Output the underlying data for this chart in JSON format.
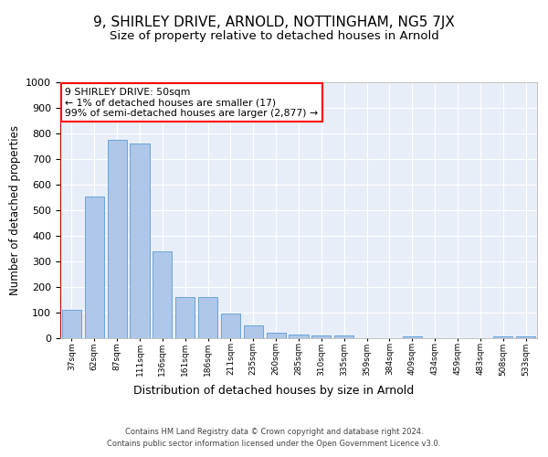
{
  "title1": "9, SHIRLEY DRIVE, ARNOLD, NOTTINGHAM, NG5 7JX",
  "title2": "Size of property relative to detached houses in Arnold",
  "xlabel": "Distribution of detached houses by size in Arnold",
  "ylabel": "Number of detached properties",
  "categories": [
    "37sqm",
    "62sqm",
    "87sqm",
    "111sqm",
    "136sqm",
    "161sqm",
    "186sqm",
    "211sqm",
    "235sqm",
    "260sqm",
    "285sqm",
    "310sqm",
    "335sqm",
    "359sqm",
    "384sqm",
    "409sqm",
    "434sqm",
    "459sqm",
    "483sqm",
    "508sqm",
    "533sqm"
  ],
  "values": [
    110,
    555,
    775,
    760,
    340,
    160,
    160,
    95,
    50,
    20,
    13,
    10,
    10,
    0,
    0,
    8,
    0,
    0,
    0,
    8,
    8
  ],
  "bar_color": "#aec6e8",
  "bar_edge_color": "#5a9bd4",
  "highlight_color": "#cc0000",
  "annotation_box_text": "9 SHIRLEY DRIVE: 50sqm\n← 1% of detached houses are smaller (17)\n99% of semi-detached houses are larger (2,877) →",
  "ylim": [
    0,
    1000
  ],
  "yticks": [
    0,
    100,
    200,
    300,
    400,
    500,
    600,
    700,
    800,
    900,
    1000
  ],
  "background_color": "#e8eef8",
  "footer_line1": "Contains HM Land Registry data © Crown copyright and database right 2024.",
  "footer_line2": "Contains public sector information licensed under the Open Government Licence v3.0.",
  "title1_fontsize": 11,
  "title2_fontsize": 9.5,
  "xlabel_fontsize": 9,
  "ylabel_fontsize": 8.5
}
